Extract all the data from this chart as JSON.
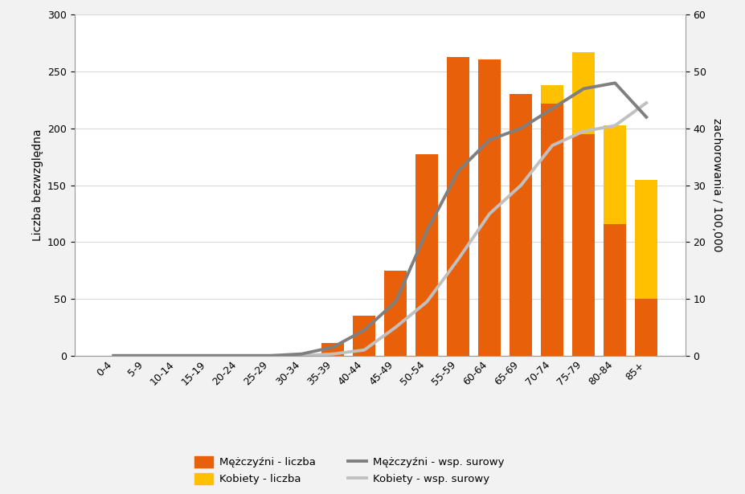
{
  "categories": [
    "0-4",
    "5-9",
    "10-14",
    "15-19",
    "20-24",
    "25-29",
    "30-34",
    "35-39",
    "40-44",
    "45-49",
    "50-54",
    "55-59",
    "60-64",
    "65-69",
    "70-74",
    "75-79",
    "80-84",
    "85+"
  ],
  "men_count": [
    0,
    0,
    0,
    0,
    0,
    0,
    1,
    11,
    35,
    75,
    177,
    263,
    261,
    230,
    222,
    195,
    116,
    50
  ],
  "women_count": [
    0,
    0,
    0,
    0,
    0,
    0,
    0,
    0,
    10,
    50,
    95,
    168,
    201,
    200,
    238,
    267,
    203,
    155
  ],
  "men_rate": [
    0.0,
    0.0,
    0.0,
    0.0,
    0.0,
    0.0,
    0.3,
    1.5,
    4.5,
    9.5,
    22.0,
    32.5,
    38.0,
    40.0,
    43.5,
    47.0,
    48.0,
    42.0
  ],
  "women_rate": [
    0.0,
    0.0,
    0.0,
    0.0,
    0.0,
    0.0,
    0.0,
    0.3,
    1.0,
    5.0,
    9.5,
    17.0,
    25.0,
    30.0,
    37.0,
    39.5,
    40.5,
    44.5
  ],
  "men_bar_color": "#e8600a",
  "women_bar_color": "#ffc000",
  "men_line_color": "#7f7f7f",
  "women_line_color": "#c0c0c0",
  "plot_bg_color": "#ffffff",
  "fig_bg_color": "#f2f2f2",
  "ylabel_left": "Liczba bezwzględna",
  "ylabel_right": "zachorowania / 100,000",
  "ylim_left": [
    0,
    300
  ],
  "ylim_right": [
    0,
    60
  ],
  "yticks_left": [
    0,
    50,
    100,
    150,
    200,
    250,
    300
  ],
  "yticks_right": [
    0,
    10,
    20,
    30,
    40,
    50,
    60
  ],
  "legend_items": [
    "Mężczyźni - liczba",
    "Kobiety - liczba",
    "Mężczyźni - wsp. surowy",
    "Kobiety - wsp. surowy"
  ],
  "bar_width": 0.72,
  "line_width": 2.8,
  "grid_color": "#d9d9d9",
  "axis_fontsize": 10,
  "tick_fontsize": 9,
  "legend_fontsize": 9.5
}
